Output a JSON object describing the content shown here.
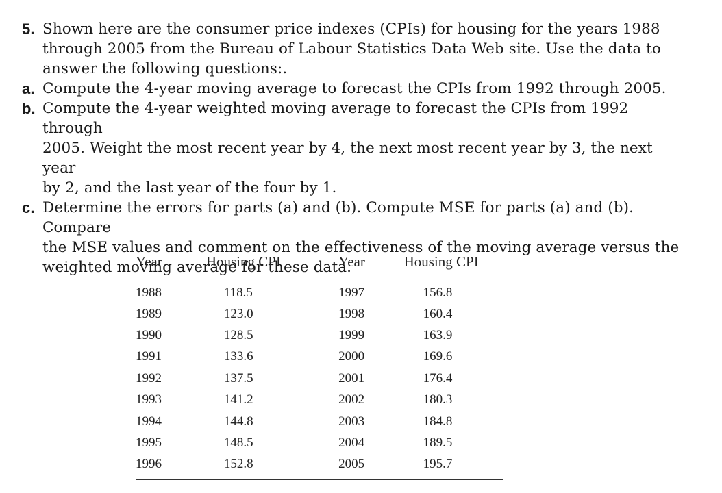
{
  "question": {
    "number": "5.",
    "intro_lines": [
      "Shown here are the consumer price indexes (CPIs) for housing for the years 1988",
      "through 2005 from the Bureau of Labour Statistics Data Web site. Use the data to",
      "answer the following questions:."
    ],
    "parts": [
      {
        "label": "a.",
        "lines": [
          "Compute the 4-year moving average to forecast the CPIs from 1992 through 2005."
        ]
      },
      {
        "label": "b.",
        "lines": [
          "Compute the 4-year weighted moving average to forecast the CPIs from 1992 through",
          "2005. Weight the most recent year by 4, the next most recent year by 3, the next year",
          "by 2, and the last year of the four by 1."
        ]
      },
      {
        "label": "c.",
        "lines": [
          "Determine the errors for parts (a) and (b). Compute MSE for parts (a) and (b). Compare",
          "the MSE values and comment on the effectiveness of the moving average versus the",
          "weighted moving average for these data."
        ]
      }
    ]
  },
  "table": {
    "headers": [
      "Year",
      "Housing CPI",
      "Year",
      "Housing CPI"
    ],
    "rows": [
      [
        "1988",
        "118.5",
        "1997",
        "156.8"
      ],
      [
        "1989",
        "123.0",
        "1998",
        "160.4"
      ],
      [
        "1990",
        "128.5",
        "1999",
        "163.9"
      ],
      [
        "1991",
        "133.6",
        "2000",
        "169.6"
      ],
      [
        "1992",
        "137.5",
        "2001",
        "176.4"
      ],
      [
        "1993",
        "141.2",
        "2002",
        "180.3"
      ],
      [
        "1994",
        "144.8",
        "2003",
        "184.8"
      ],
      [
        "1995",
        "148.5",
        "2004",
        "189.5"
      ],
      [
        "1996",
        "152.8",
        "2005",
        "195.7"
      ]
    ]
  }
}
